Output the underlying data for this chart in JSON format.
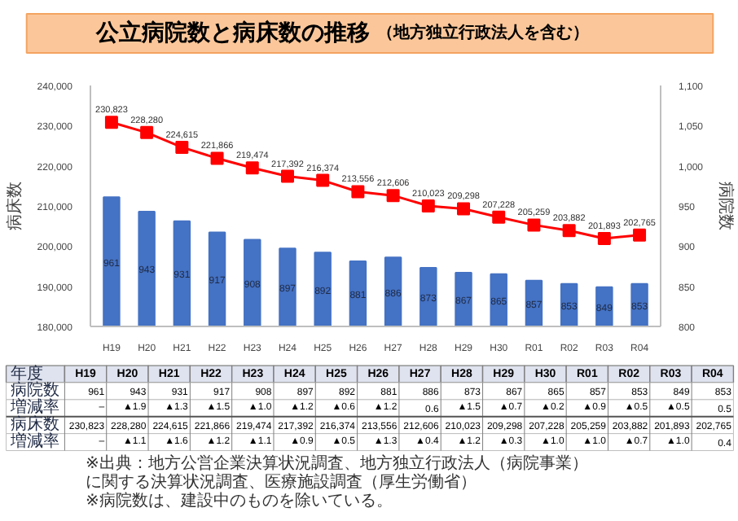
{
  "chart_data": {
    "type": "bar",
    "title": "公立病院数と病床数の推移",
    "subtitle": "（地方独立行政法人を含む）",
    "ylabel": "病床数",
    "y2label": "病院数",
    "categories": [
      "H19",
      "H20",
      "H21",
      "H22",
      "H23",
      "H24",
      "H25",
      "H26",
      "H27",
      "H28",
      "H29",
      "H30",
      "R01",
      "R02",
      "R03",
      "R04"
    ],
    "series": [
      {
        "axis": "y2",
        "color": "#4472c4",
        "values": [
          961,
          943,
          931,
          917,
          908,
          897,
          892,
          881,
          886,
          873,
          867,
          865,
          857,
          853,
          849,
          853
        ],
        "value_labels": [
          "961",
          "943",
          "931",
          "917",
          "908",
          "897",
          "892",
          "881",
          "886",
          "873",
          "867",
          "865",
          "857",
          "853",
          "849",
          "853"
        ]
      },
      {
        "type": "line",
        "axis": "y",
        "color": "#ff0000",
        "marker": "square",
        "values": [
          230823,
          228280,
          224615,
          221866,
          219474,
          217392,
          216374,
          213556,
          212606,
          210023,
          209298,
          207228,
          205259,
          203882,
          201893,
          202765
        ],
        "value_labels": [
          "230,823",
          "228,280",
          "224,615",
          "221,866",
          "219,474",
          "217,392",
          "216,374",
          "213,556",
          "212,606",
          "210,023",
          "209,298",
          "207,228",
          "205,259",
          "203,882",
          "201,893",
          "202,765"
        ]
      }
    ],
    "ylim": [
      180000,
      240000
    ],
    "yticks": [
      {
        "value": 180000,
        "label": "180,000"
      },
      {
        "value": 190000,
        "label": "190,000"
      },
      {
        "value": 200000,
        "label": "200,000"
      },
      {
        "value": 210000,
        "label": "210,000"
      },
      {
        "value": 220000,
        "label": "220,000"
      },
      {
        "value": 230000,
        "label": "230,000"
      },
      {
        "value": 240000,
        "label": "240,000"
      }
    ],
    "y2lim": [
      800,
      1100
    ],
    "y2ticks": [
      800,
      850,
      900,
      950,
      {
        "value": 1000,
        "label": "1,000"
      },
      {
        "value": 1050,
        "label": "1,050"
      },
      {
        "value": 1100,
        "label": "1,100"
      }
    ],
    "grid": false,
    "annotations": [
      "年度",
      "病院数",
      "増減率",
      "病床数",
      "増減率",
      "–",
      "▲1.9",
      "▲1.3",
      "▲1.5",
      "▲1.0",
      "▲1.2",
      "▲0.6",
      "▲1.2",
      "0.6",
      "▲1.5",
      "▲0.7",
      "▲0.2",
      "▲0.9",
      "▲0.5",
      "▲0.5",
      "0.5",
      "–",
      "▲1.1",
      "▲1.6",
      "▲1.2",
      "▲1.1",
      "▲0.9",
      "▲0.5",
      "▲1.3",
      "▲0.4",
      "▲1.2",
      "▲0.3",
      "▲1.0",
      "▲1.0",
      "▲0.7",
      "▲1.0",
      "0.4",
      "※出典：地方公営企業決算状況調査、地方独立行政法人（病院事業）",
      "に関する決算状況調査、医療施設調査（厚生労働省）",
      "※病院数は、建設中のものを除いている。"
    ]
  }
}
